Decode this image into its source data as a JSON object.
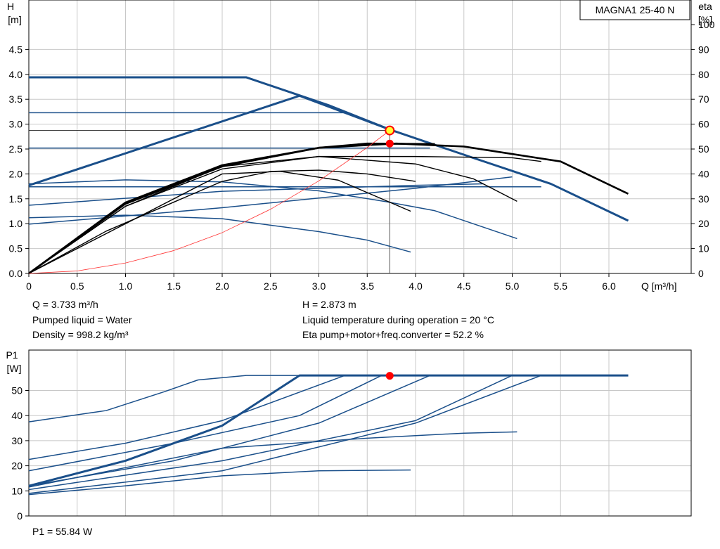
{
  "model_label": "MAGNA1 25-40 N",
  "info": {
    "q": "Q = 3.733 m³/h",
    "h": "H = 2.873 m",
    "liquid": "Pumped liquid = Water",
    "temperature": "Liquid temperature during operation = 20 °C",
    "density": "Density = 998.2 kg/m³",
    "eta": "Eta pump+motor+freq.converter = 52.2 %",
    "p1": "P1 = 55.84 W"
  },
  "colors": {
    "curve_blue": "#1a4f8a",
    "eta_black": "#000000",
    "system_red": "#ff3333",
    "marker_red": "#ff0000",
    "marker_yellow": "#ffff33",
    "grid": "#c8c8c8"
  },
  "chart_data": [
    {
      "type": "line",
      "id": "head",
      "ylabel_lines": [
        "H",
        "[m]"
      ],
      "ylabel2_lines": [
        "eta",
        "[%]"
      ],
      "xlabel": "Q [m³/h]",
      "xlim": [
        0,
        6.9
      ],
      "ylim": [
        0,
        5.5
      ],
      "y2lim": [
        0,
        110
      ],
      "xticks": [
        0,
        0.5,
        1.0,
        1.5,
        2.0,
        2.5,
        3.0,
        3.5,
        4.0,
        4.5,
        5.0,
        5.5,
        6.0
      ],
      "xtick_labels": [
        "0",
        "0.5",
        "1.0",
        "1.5",
        "2.0",
        "2.5",
        "3.0",
        "3.5",
        "4.0",
        "4.5",
        "5.0",
        "5.5",
        "6.0"
      ],
      "yticks": [
        0,
        0.5,
        1.0,
        1.5,
        2.0,
        2.5,
        3.0,
        3.5,
        4.0,
        4.5
      ],
      "ytick_labels": [
        "0.0",
        "0.5",
        "1.0",
        "1.5",
        "2.0",
        "2.5",
        "3.0",
        "3.5",
        "4.0",
        "4.5"
      ],
      "y2ticks": [
        0,
        10,
        20,
        30,
        40,
        50,
        60,
        70,
        80,
        90,
        100
      ],
      "y2tick_labels": [
        "0",
        "10",
        "20",
        "30",
        "40",
        "50",
        "60",
        "70",
        "80",
        "90",
        "100"
      ],
      "grid": true,
      "series": [
        {
          "kind": "head",
          "bold": true,
          "points": [
            [
              0,
              3.94
            ],
            [
              2.25,
              3.94
            ],
            [
              3.1,
              3.38
            ],
            [
              3.75,
              2.88
            ],
            [
              4.6,
              2.32
            ],
            [
              5.4,
              1.8
            ],
            [
              6.2,
              1.06
            ]
          ]
        },
        {
          "kind": "head",
          "bold": true,
          "points": [
            [
              0,
              1.77
            ],
            [
              2.8,
              3.57
            ],
            [
              3.75,
              2.88
            ]
          ]
        },
        {
          "kind": "head",
          "bold": false,
          "points": [
            [
              0,
              3.23
            ],
            [
              3.27,
              3.23
            ]
          ]
        },
        {
          "kind": "head",
          "bold": false,
          "points": [
            [
              0,
              2.52
            ],
            [
              4.15,
              2.52
            ]
          ]
        },
        {
          "kind": "head",
          "bold": false,
          "points": [
            [
              0,
              1.74
            ],
            [
              5.3,
              1.74
            ]
          ]
        },
        {
          "kind": "head",
          "bold": false,
          "points": [
            [
              0,
              1.8
            ],
            [
              1.0,
              1.88
            ],
            [
              2.0,
              1.84
            ],
            [
              3.0,
              1.66
            ],
            [
              3.7,
              1.44
            ],
            [
              4.2,
              1.26
            ],
            [
              5.05,
              0.7
            ]
          ]
        },
        {
          "kind": "head",
          "bold": false,
          "points": [
            [
              0,
              1.12
            ],
            [
              1.0,
              1.17
            ],
            [
              2.0,
              1.1
            ],
            [
              3.0,
              0.84
            ],
            [
              3.5,
              0.67
            ],
            [
              3.95,
              0.43
            ]
          ]
        },
        {
          "kind": "head",
          "bold": false,
          "points": [
            [
              0,
              1.37
            ],
            [
              2.0,
              1.65
            ],
            [
              4.0,
              1.77
            ],
            [
              4.7,
              1.8
            ]
          ]
        },
        {
          "kind": "head",
          "bold": false,
          "points": [
            [
              0,
              0.99
            ],
            [
              2.0,
              1.32
            ],
            [
              4.0,
              1.71
            ],
            [
              5.0,
              1.94
            ]
          ]
        },
        {
          "kind": "eta",
          "bold": true,
          "points": [
            [
              0,
              0
            ],
            [
              1.0,
              28
            ],
            [
              2.0,
              43
            ],
            [
              3.0,
              50.5
            ],
            [
              3.8,
              52.2
            ],
            [
              4.5,
              51
            ],
            [
              5.5,
              45
            ],
            [
              6.2,
              32
            ]
          ]
        },
        {
          "kind": "eta",
          "bold": true,
          "points": [
            [
              0,
              0
            ],
            [
              1.0,
              28.5
            ],
            [
              2.0,
              43.5
            ],
            [
              3.0,
              50.5
            ],
            [
              3.5,
              52.2
            ],
            [
              4.2,
              52
            ]
          ]
        },
        {
          "kind": "eta",
          "bold": false,
          "points": [
            [
              0,
              0
            ],
            [
              1.0,
              27
            ],
            [
              2.0,
              42
            ],
            [
              3.0,
              47
            ],
            [
              4.0,
              47
            ],
            [
              5.0,
              46.5
            ],
            [
              5.3,
              45
            ]
          ]
        },
        {
          "kind": "eta",
          "bold": false,
          "points": [
            [
              0,
              0
            ],
            [
              1.0,
              27
            ],
            [
              2.0,
              43
            ],
            [
              3.0,
              47
            ],
            [
              4.0,
              44
            ],
            [
              4.6,
              38
            ],
            [
              5.05,
              29
            ]
          ]
        },
        {
          "kind": "eta",
          "bold": false,
          "points": [
            [
              0,
              0
            ],
            [
              1.0,
              20
            ],
            [
              2.0,
              40
            ],
            [
              2.6,
              41
            ],
            [
              3.2,
              37.5
            ],
            [
              3.95,
              25
            ]
          ]
        },
        {
          "kind": "eta",
          "bold": false,
          "points": [
            [
              0,
              0
            ],
            [
              0.8,
              17
            ],
            [
              1.4,
              27
            ],
            [
              2.0,
              37
            ],
            [
              2.5,
              41
            ],
            [
              3.0,
              41.5
            ],
            [
              3.5,
              40
            ],
            [
              4.0,
              37
            ]
          ]
        },
        {
          "kind": "system",
          "points": [
            [
              0,
              0
            ],
            [
              0.5,
              0.05
            ],
            [
              1.0,
              0.21
            ],
            [
              1.5,
              0.46
            ],
            [
              2.0,
              0.82
            ],
            [
              2.5,
              1.29
            ],
            [
              3.0,
              1.86
            ],
            [
              3.5,
              2.53
            ],
            [
              3.733,
              2.873
            ]
          ]
        }
      ],
      "duty_point": {
        "q": 3.733,
        "h": 2.873,
        "eta": 52.2,
        "h_line": 2.873
      }
    },
    {
      "type": "line",
      "id": "power",
      "ylabel_lines": [
        "P1",
        "[W]"
      ],
      "xlim": [
        0,
        6.9
      ],
      "ylim": [
        0,
        65
      ],
      "xticks": [
        0,
        0.5,
        1.0,
        1.5,
        2.0,
        2.5,
        3.0,
        3.5,
        4.0,
        4.5,
        5.0,
        5.5,
        6.0
      ],
      "yticks": [
        0,
        10,
        20,
        30,
        40,
        50
      ],
      "ytick_labels": [
        "0",
        "10",
        "20",
        "30",
        "40",
        "50"
      ],
      "grid": true,
      "series": [
        {
          "bold": false,
          "points": [
            [
              0,
              37.5
            ],
            [
              0.8,
              42
            ],
            [
              1.4,
              49.5
            ],
            [
              1.75,
              54.2
            ],
            [
              2.25,
              56
            ],
            [
              6.2,
              56
            ]
          ]
        },
        {
          "bold": true,
          "points": [
            [
              0,
              12
            ],
            [
              1.0,
              22
            ],
            [
              2.0,
              36
            ],
            [
              2.8,
              56
            ],
            [
              6.2,
              56
            ]
          ]
        },
        {
          "bold": false,
          "points": [
            [
              0,
              22.5
            ],
            [
              1.0,
              29
            ],
            [
              2.0,
              38
            ],
            [
              3.27,
              56
            ]
          ]
        },
        {
          "bold": false,
          "points": [
            [
              0,
              18
            ],
            [
              1.5,
              29
            ],
            [
              2.8,
              40
            ],
            [
              3.65,
              56
            ]
          ]
        },
        {
          "bold": false,
          "points": [
            [
              0,
              12
            ],
            [
              1.5,
              22
            ],
            [
              3.0,
              37
            ],
            [
              4.15,
              56
            ]
          ]
        },
        {
          "bold": false,
          "points": [
            [
              0,
              10.5
            ],
            [
              2.0,
              22
            ],
            [
              4.0,
              38
            ],
            [
              5.0,
              56
            ]
          ]
        },
        {
          "bold": false,
          "points": [
            [
              0,
              9
            ],
            [
              2.0,
              18
            ],
            [
              4.0,
              37
            ],
            [
              5.3,
              56
            ]
          ]
        },
        {
          "bold": false,
          "points": [
            [
              0,
              11.5
            ],
            [
              2.0,
              27
            ],
            [
              3.5,
              31
            ],
            [
              4.5,
              33
            ],
            [
              5.05,
              33.5
            ]
          ]
        },
        {
          "bold": false,
          "points": [
            [
              0,
              8.5
            ],
            [
              1.0,
              12
            ],
            [
              2.0,
              16
            ],
            [
              3.0,
              18
            ],
            [
              3.95,
              18.3
            ]
          ]
        }
      ],
      "duty_point": {
        "q": 3.733,
        "p1": 55.84
      }
    }
  ]
}
